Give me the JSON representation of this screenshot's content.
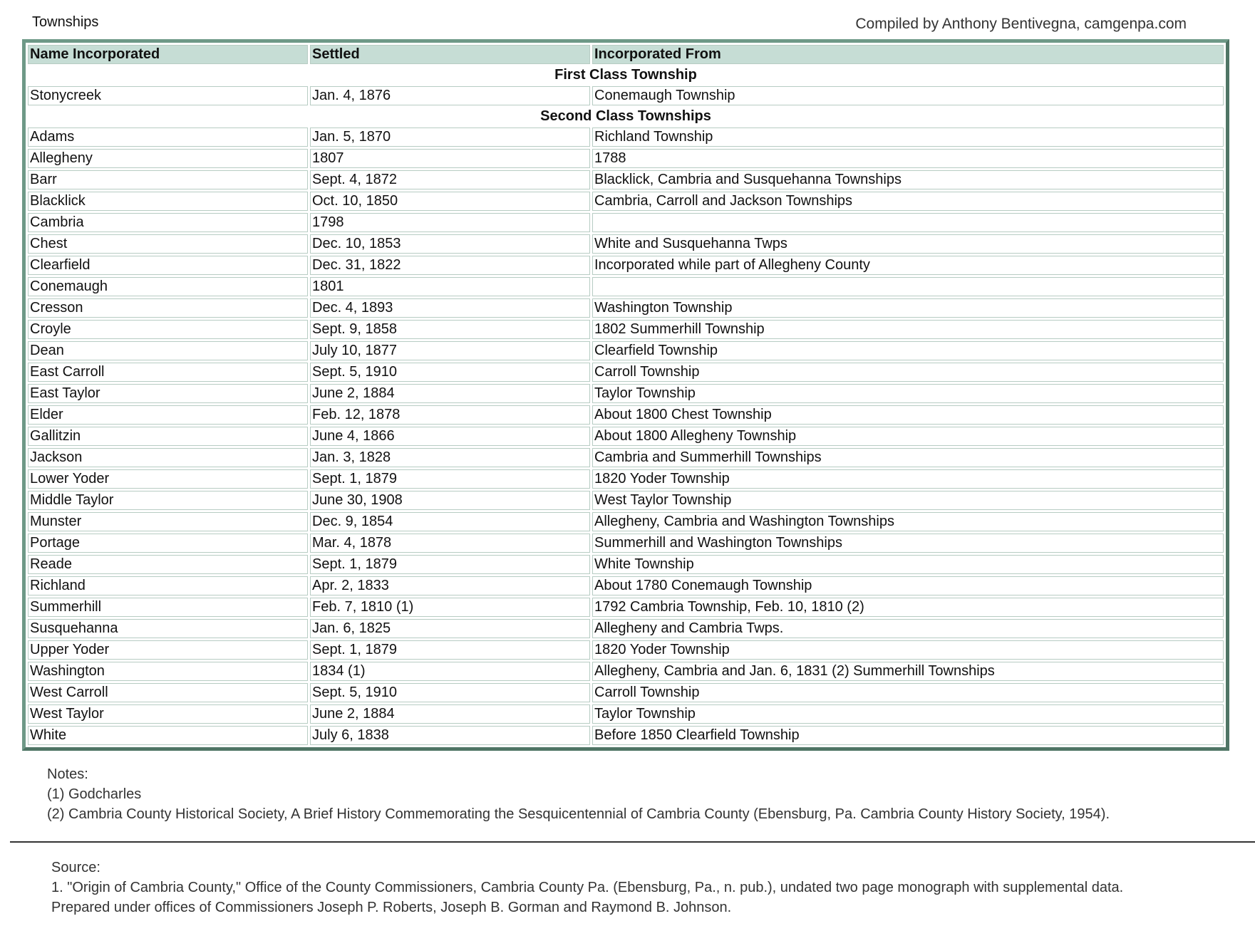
{
  "title": "Townships",
  "credit": "Compiled by Anthony Bentivegna, camgenpa.com",
  "colors": {
    "header_bg": "#c6ddd5",
    "border": "#6e9987"
  },
  "table": {
    "headers": [
      "Name Incorporated",
      "Settled",
      "Incorporated From"
    ],
    "first_class_label": "First Class Township",
    "first_class": [
      [
        "Stonycreek",
        "Jan. 4, 1876",
        "Conemaugh Township"
      ]
    ],
    "second_class_label": "Second Class Townships",
    "second_class": [
      [
        "Adams",
        "Jan. 5, 1870",
        "Richland Township"
      ],
      [
        "Allegheny",
        "1807",
        "1788"
      ],
      [
        "Barr",
        "Sept. 4, 1872",
        "Blacklick, Cambria and Susquehanna Townships"
      ],
      [
        "Blacklick",
        "Oct. 10, 1850",
        "Cambria, Carroll and Jackson Townships"
      ],
      [
        "Cambria",
        "1798",
        ""
      ],
      [
        "Chest",
        "Dec. 10, 1853",
        "White and Susquehanna Twps"
      ],
      [
        "Clearfield",
        "Dec. 31, 1822",
        "Incorporated while part of Allegheny County"
      ],
      [
        "Conemaugh",
        "1801",
        ""
      ],
      [
        "Cresson",
        "Dec. 4, 1893",
        "Washington Township"
      ],
      [
        "Croyle",
        "Sept. 9, 1858",
        "1802 Summerhill Township"
      ],
      [
        "Dean",
        "July 10, 1877",
        "Clearfield Township"
      ],
      [
        "East Carroll",
        "Sept. 5, 1910",
        "Carroll Township"
      ],
      [
        "East Taylor",
        "June 2, 1884",
        "Taylor Township"
      ],
      [
        "Elder",
        "Feb. 12, 1878",
        "About 1800 Chest Township"
      ],
      [
        "Gallitzin",
        "June 4, 1866",
        "About 1800 Allegheny Township"
      ],
      [
        "Jackson",
        "Jan. 3, 1828",
        "Cambria and Summerhill Townships"
      ],
      [
        "Lower Yoder",
        "Sept. 1, 1879",
        "1820 Yoder Township"
      ],
      [
        "Middle Taylor",
        "June 30, 1908",
        "West Taylor Township"
      ],
      [
        "Munster",
        "Dec. 9, 1854",
        "Allegheny, Cambria and Washington Townships"
      ],
      [
        "Portage",
        "Mar. 4, 1878",
        "Summerhill and Washington Townships"
      ],
      [
        "Reade",
        "Sept. 1, 1879",
        "White Township"
      ],
      [
        "Richland",
        "Apr. 2, 1833",
        "About 1780 Conemaugh Township"
      ],
      [
        "Summerhill",
        "Feb. 7, 1810 (1)",
        "1792 Cambria Township, Feb. 10, 1810 (2)"
      ],
      [
        "Susquehanna",
        "Jan. 6, 1825",
        "Allegheny and Cambria Twps."
      ],
      [
        "Upper Yoder",
        "Sept. 1, 1879",
        "1820 Yoder Township"
      ],
      [
        "Washington",
        "1834 (1)",
        "Allegheny, Cambria and Jan. 6, 1831 (2) Summerhill Townships"
      ],
      [
        "West Carroll",
        "Sept. 5, 1910",
        "Carroll Township"
      ],
      [
        "West Taylor",
        "June 2, 1884",
        "Taylor Township"
      ],
      [
        "White",
        "July 6, 1838",
        "Before 1850 Clearfield Township"
      ]
    ]
  },
  "notes": {
    "heading": "Notes:",
    "lines": [
      "(1) Godcharles",
      "(2) Cambria County Historical Society, A Brief History Commemorating the Sesquicentennial of Cambria County (Ebensburg, Pa. Cambria County History Society, 1954)."
    ]
  },
  "source": {
    "heading": "Source:",
    "lines": [
      "1. \"Origin of Cambria County,\" Office of the County Commissioners, Cambria County Pa. (Ebensburg, Pa., n. pub.), undated two page monograph with supplemental data.",
      "Prepared under offices of Commissioners Joseph P. Roberts, Joseph B. Gorman and Raymond B. Johnson."
    ]
  }
}
